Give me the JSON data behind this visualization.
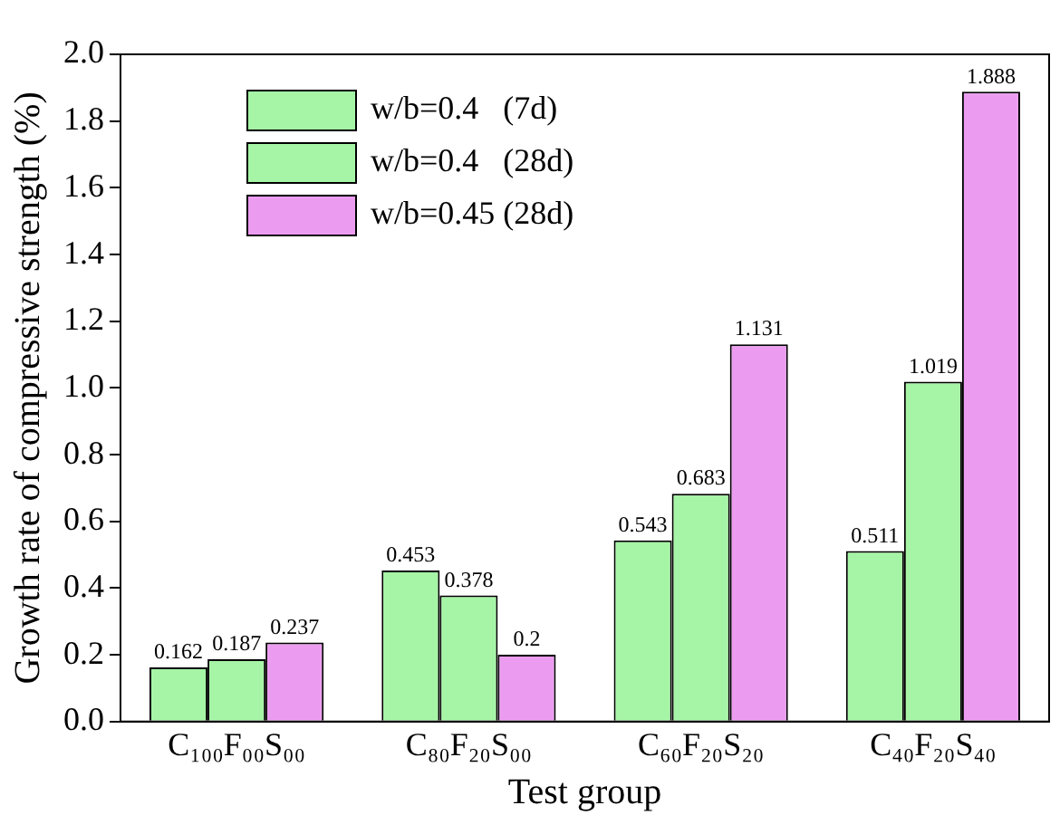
{
  "chart_data": {
    "type": "bar",
    "xlabel": "Test group",
    "ylabel": "Growth rate of compressive strength (%)",
    "categories": [
      "C₁₀₀F₀₀S₀₀",
      "C₈₀F₂₀S₀₀",
      "C₆₀F₂₀S₂₀",
      "C₄₀F₂₀S₄₀"
    ],
    "series": [
      {
        "name": "w/b=0.4   (7d)",
        "color": "#a6f5a6",
        "values": [
          0.162,
          0.453,
          0.543,
          0.511
        ]
      },
      {
        "name": "w/b=0.4   (28d)",
        "color": "#a6f5a6",
        "values": [
          0.187,
          0.378,
          0.683,
          1.019
        ]
      },
      {
        "name": "w/b=0.45 (28d)",
        "color": "#ec9cf0",
        "values": [
          0.237,
          0.2,
          1.131,
          1.888
        ]
      }
    ],
    "ylim": [
      0,
      2.0
    ],
    "yticks": [
      {
        "value": 0,
        "label": "0.0"
      },
      {
        "value": 0.2,
        "label": "0.2"
      },
      {
        "value": 0.4,
        "label": "0.4"
      },
      {
        "value": 0.6,
        "label": "0.6"
      },
      {
        "value": 0.8,
        "label": "0.8"
      },
      {
        "value": 1.0,
        "label": "1.0"
      },
      {
        "value": 1.2,
        "label": "1.2"
      },
      {
        "value": 1.4,
        "label": "1.4"
      },
      {
        "value": 1.6,
        "label": "1.6"
      },
      {
        "value": 1.8,
        "label": "1.8"
      },
      {
        "value": 2.0,
        "label": "2.0"
      }
    ],
    "grid": false,
    "legend": "top left",
    "data_labels": true
  }
}
